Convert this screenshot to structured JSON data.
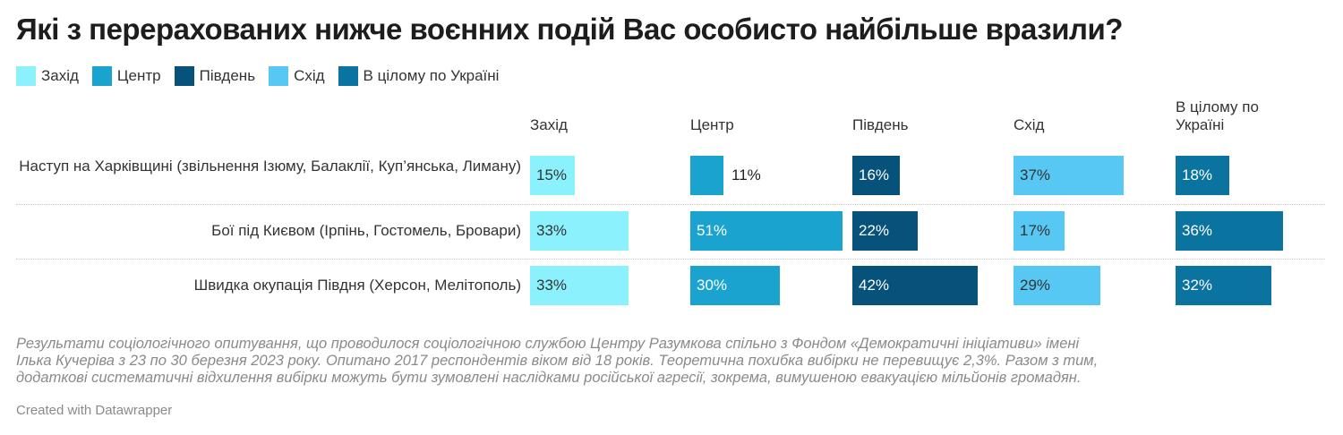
{
  "title": "Які з перерахованих нижче воєнних подій Вас особисто найбільше вразили?",
  "notes": "Результати соціологічного опитування, що проводилося соціологічною службою Центру Разумкова спільно з Фондом «Демократичні ініціативи» імені Ілька Кучеріва з 23 по 30 березня 2023 року. Опитано 2017 респондентів віком від 18 років. Теоретична похибка вибірки не перевищує 2,3%. Разом з тим, додаткові систематичні відхилення вибірки можуть бути зумовлені наслідками російської агресії, зокрема, вимушеною евакуацією мільйонів громадян.",
  "credit": "Created with Datawrapper",
  "chart_data": {
    "type": "bar",
    "orientation": "horizontal",
    "layout": "small-multiples",
    "unit": "%",
    "categories": [
      "Наступ на Харківщині (звільнення Ізюму, Балаклії, Куп’янська, Лиману)",
      "Бої під Києвом (Ірпінь, Гостомель, Бровари)",
      "Швидка окупація Півдня (Херсон, Мелітополь)"
    ],
    "series": [
      {
        "name": "Захід",
        "color": "#8bf1fc",
        "values": [
          15,
          33,
          33
        ]
      },
      {
        "name": "Центр",
        "color": "#1ba3cf",
        "values": [
          11,
          51,
          30
        ]
      },
      {
        "name": "Південь",
        "color": "#07527a",
        "values": [
          16,
          22,
          42
        ]
      },
      {
        "name": "Схід",
        "color": "#57c8f4",
        "values": [
          37,
          17,
          29
        ]
      },
      {
        "name": "В цілому по Україні",
        "color": "#0b73a0",
        "values": [
          18,
          36,
          32
        ]
      }
    ],
    "xlim": [
      0,
      51
    ],
    "legend_position": "top-left",
    "grid": false
  }
}
